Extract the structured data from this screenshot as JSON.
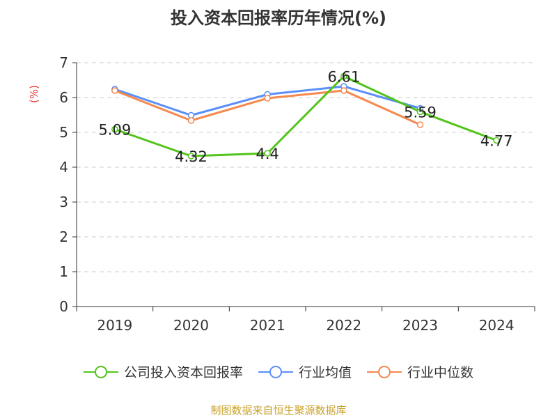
{
  "chart_data": {
    "type": "line",
    "title": "投入资本回报率历年情况(%)",
    "ylabel": "(%)",
    "xlabel": "",
    "categories": [
      "2019",
      "2020",
      "2021",
      "2022",
      "2023",
      "2024"
    ],
    "ylim": [
      0,
      7
    ],
    "yticks": [
      0,
      1,
      2,
      3,
      4,
      5,
      6,
      7
    ],
    "grid": true,
    "legend_position": "bottom",
    "series": [
      {
        "name": "公司投入资本回报率",
        "color": "#52c41a",
        "values": [
          5.09,
          4.32,
          4.4,
          6.61,
          5.59,
          4.77
        ],
        "labels": [
          "5.09",
          "4.32",
          "4.4",
          "6.61",
          "5.59",
          "4.77"
        ]
      },
      {
        "name": "行业均值",
        "color": "#5b8ff9",
        "values": [
          6.24,
          5.49,
          6.09,
          6.32,
          5.69,
          null
        ]
      },
      {
        "name": "行业中位数",
        "color": "#f5894e",
        "values": [
          6.2,
          5.34,
          5.98,
          6.2,
          5.22,
          null
        ]
      }
    ]
  },
  "footer": {
    "source": "制图数据来自恒生聚源数据库"
  }
}
